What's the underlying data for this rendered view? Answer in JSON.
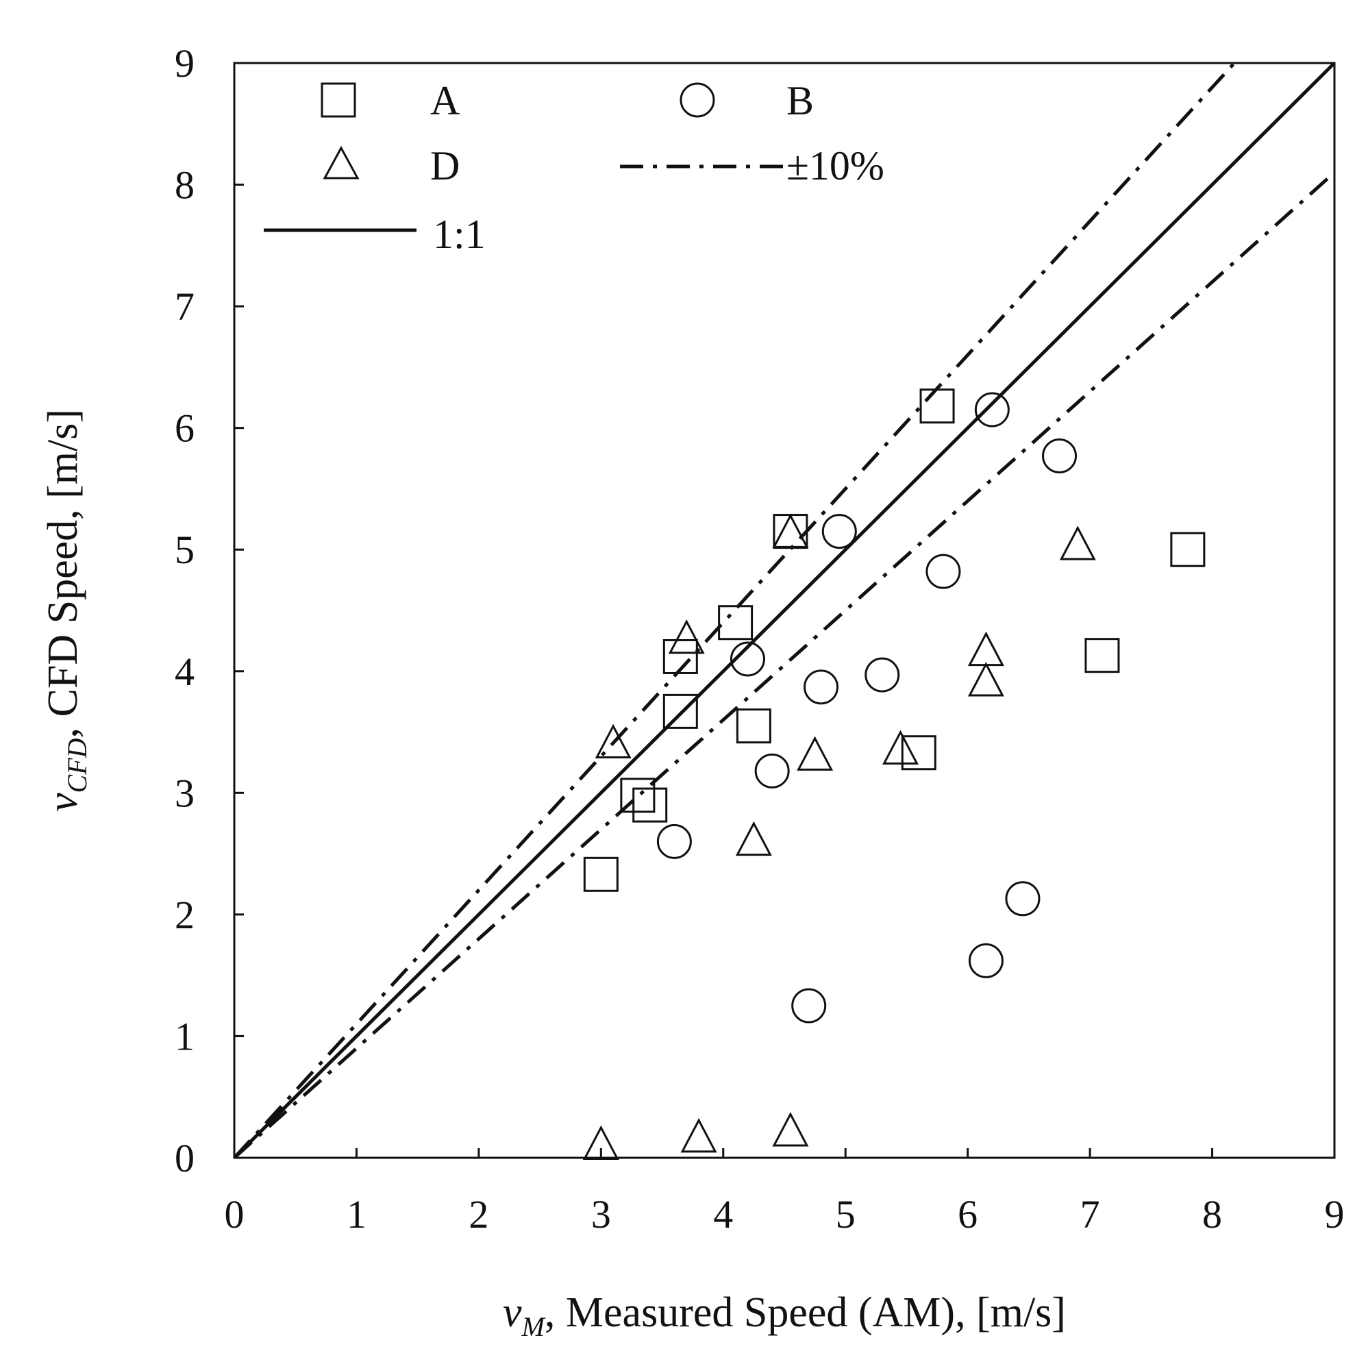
{
  "chart_data": {
    "type": "scatter",
    "title": "",
    "xlabel": {
      "var": "v",
      "sub": "M",
      "text": ", Measured Speed (AM), [m/s]"
    },
    "ylabel": {
      "var": "v",
      "sub": "CFD",
      "text": ", CFD Speed, [m/s]"
    },
    "xlim": [
      0,
      9
    ],
    "ylim": [
      0,
      9
    ],
    "xticks": [
      "0",
      "1",
      "2",
      "3",
      "4",
      "5",
      "6",
      "7",
      "8",
      "9"
    ],
    "yticks": [
      "0",
      "1",
      "2",
      "3",
      "4",
      "5",
      "6",
      "7",
      "8",
      "9"
    ],
    "grid": false,
    "legend_position": "top-left",
    "legend": [
      {
        "label": "A",
        "marker": "square"
      },
      {
        "label": "B",
        "marker": "circle"
      },
      {
        "label": "D",
        "marker": "triangle"
      },
      {
        "label": "±10%",
        "line": "dash-dot"
      },
      {
        "label": "1:1",
        "line": "solid"
      }
    ],
    "reference_lines": [
      {
        "name": "1:1",
        "slope": 1.0,
        "style": "solid"
      },
      {
        "name": "+10%",
        "slope": 1.1,
        "style": "dash-dot"
      },
      {
        "name": "-10%",
        "slope": 0.9,
        "style": "dash-dot"
      }
    ],
    "series": [
      {
        "name": "A",
        "marker": "square",
        "points": [
          [
            5.75,
            6.18
          ],
          [
            4.55,
            5.15
          ],
          [
            4.1,
            4.4
          ],
          [
            3.65,
            4.12
          ],
          [
            3.65,
            3.67
          ],
          [
            4.25,
            3.55
          ],
          [
            3.3,
            2.98
          ],
          [
            3.4,
            2.9
          ],
          [
            3.0,
            2.33
          ],
          [
            5.6,
            3.33
          ],
          [
            7.1,
            4.13
          ],
          [
            7.8,
            5.0
          ]
        ]
      },
      {
        "name": "B",
        "marker": "circle",
        "points": [
          [
            6.2,
            6.15
          ],
          [
            6.75,
            5.77
          ],
          [
            4.95,
            5.15
          ],
          [
            5.8,
            4.82
          ],
          [
            4.2,
            4.1
          ],
          [
            4.8,
            3.87
          ],
          [
            5.3,
            3.97
          ],
          [
            4.4,
            3.18
          ],
          [
            3.6,
            2.6
          ],
          [
            6.45,
            2.13
          ],
          [
            6.15,
            1.62
          ],
          [
            4.7,
            1.25
          ]
        ]
      },
      {
        "name": "D",
        "marker": "triangle",
        "points": [
          [
            4.55,
            5.15
          ],
          [
            3.7,
            4.28
          ],
          [
            6.9,
            5.05
          ],
          [
            6.15,
            4.18
          ],
          [
            6.15,
            3.93
          ],
          [
            3.1,
            3.42
          ],
          [
            4.75,
            3.32
          ],
          [
            5.45,
            3.37
          ],
          [
            4.25,
            2.62
          ],
          [
            3.0,
            0.12
          ],
          [
            3.8,
            0.18
          ],
          [
            4.55,
            0.23
          ]
        ]
      }
    ]
  }
}
